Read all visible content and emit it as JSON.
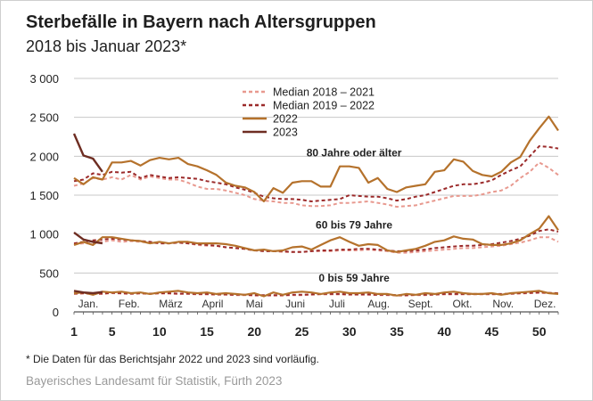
{
  "header": {
    "title": "Sterbefälle in Bayern nach Altersgruppen",
    "subtitle": "2018 bis Januar 2023*"
  },
  "footer": {
    "footnote": "* Die Daten für das Berichtsjahr 2022 und 2023 sind vorläufig.",
    "source": "Bayerisches Landesamt für Statistik, Fürth 2023"
  },
  "colors": {
    "median_2018_2021": "#e8998f",
    "median_2019_2022": "#9b2a2a",
    "y2022": "#b5722c",
    "y2023": "#6e2d22"
  },
  "chart_data": {
    "type": "line",
    "xlim": [
      1,
      52
    ],
    "ylim": [
      0,
      3000
    ],
    "x_ticks": [
      1,
      5,
      10,
      15,
      20,
      25,
      30,
      35,
      40,
      45,
      50
    ],
    "y_ticks": [
      0,
      500,
      1000,
      1500,
      2000,
      2500,
      3000
    ],
    "y_tick_labels": [
      "0",
      "500",
      "1 000",
      "1 500",
      "2 000",
      "2 500",
      "3 000"
    ],
    "months": [
      {
        "label": "Jan.",
        "week": 2.5
      },
      {
        "label": "Feb.",
        "week": 6.8
      },
      {
        "label": "März",
        "week": 11.2
      },
      {
        "label": "April",
        "week": 15.6
      },
      {
        "label": "Mai",
        "week": 20
      },
      {
        "label": "Juni",
        "week": 24.3
      },
      {
        "label": "Juli",
        "week": 28.7
      },
      {
        "label": "Aug.",
        "week": 33.1
      },
      {
        "label": "Sept.",
        "week": 37.5
      },
      {
        "label": "Okt.",
        "week": 41.9
      },
      {
        "label": "Nov.",
        "week": 46.2
      },
      {
        "label": "Dez.",
        "week": 50.6
      }
    ],
    "grid": true,
    "legend": {
      "position": "top-center",
      "entries": [
        {
          "label": "Median 2018 – 2021",
          "series": "median_2018_2021",
          "dash": "dashed"
        },
        {
          "label": "Median 2019 – 2022",
          "series": "median_2019_2022",
          "dash": "dashed"
        },
        {
          "label": "2022",
          "series": "y2022",
          "dash": "solid"
        },
        {
          "label": "2023",
          "series": "y2023",
          "dash": "solid"
        }
      ]
    },
    "groups": [
      {
        "label": "80 Jahre oder älter",
        "label_week": 30.5,
        "label_value": 2000,
        "series": {
          "median_2018_2021": [
            1620,
            1650,
            1720,
            1700,
            1730,
            1700,
            1760,
            1700,
            1740,
            1720,
            1700,
            1700,
            1660,
            1610,
            1580,
            1580,
            1560,
            1530,
            1500,
            1450,
            1430,
            1420,
            1400,
            1400,
            1370,
            1360,
            1360,
            1370,
            1400,
            1400,
            1410,
            1420,
            1400,
            1380,
            1350,
            1360,
            1370,
            1400,
            1430,
            1460,
            1490,
            1490,
            1490,
            1510,
            1540,
            1560,
            1620,
            1720,
            1800,
            1920,
            1850,
            1760
          ],
          "median_2019_2022": [
            1680,
            1700,
            1780,
            1760,
            1800,
            1790,
            1800,
            1720,
            1760,
            1740,
            1720,
            1730,
            1720,
            1710,
            1680,
            1660,
            1640,
            1600,
            1570,
            1530,
            1480,
            1460,
            1450,
            1450,
            1440,
            1420,
            1430,
            1440,
            1450,
            1500,
            1490,
            1480,
            1480,
            1460,
            1430,
            1450,
            1480,
            1500,
            1540,
            1580,
            1620,
            1640,
            1640,
            1660,
            1690,
            1760,
            1820,
            1870,
            2000,
            2130,
            2120,
            2100
          ],
          "y2022": [
            1720,
            1640,
            1730,
            1700,
            1920,
            1920,
            1940,
            1880,
            1950,
            1980,
            1960,
            1980,
            1900,
            1870,
            1820,
            1760,
            1660,
            1620,
            1600,
            1540,
            1420,
            1590,
            1530,
            1660,
            1680,
            1680,
            1610,
            1610,
            1870,
            1870,
            1850,
            1660,
            1720,
            1580,
            1540,
            1600,
            1620,
            1640,
            1800,
            1820,
            1960,
            1930,
            1810,
            1760,
            1740,
            1800,
            1920,
            1990,
            2200,
            2360,
            2510,
            2330
          ],
          "y2023": [
            2290,
            2010,
            1970,
            1800
          ]
        }
      },
      {
        "label": "60 bis 79 Jahre",
        "label_week": 30.5,
        "label_value": 1070,
        "series": {
          "median_2018_2021": [
            870,
            880,
            880,
            900,
            920,
            900,
            910,
            900,
            890,
            880,
            880,
            890,
            880,
            860,
            850,
            850,
            830,
            820,
            810,
            790,
            780,
            780,
            770,
            770,
            770,
            780,
            780,
            780,
            790,
            790,
            790,
            800,
            790,
            780,
            760,
            760,
            770,
            780,
            790,
            800,
            810,
            820,
            820,
            830,
            840,
            850,
            870,
            890,
            920,
            960,
            960,
            900
          ],
          "median_2019_2022": [
            880,
            900,
            920,
            930,
            940,
            930,
            920,
            910,
            900,
            880,
            880,
            890,
            880,
            870,
            860,
            850,
            830,
            820,
            810,
            790,
            780,
            780,
            780,
            770,
            770,
            780,
            790,
            790,
            800,
            800,
            810,
            810,
            800,
            790,
            780,
            780,
            790,
            800,
            820,
            830,
            840,
            850,
            850,
            860,
            870,
            890,
            910,
            940,
            980,
            1040,
            1060,
            1030
          ],
          "y2022": [
            860,
            900,
            860,
            960,
            960,
            940,
            920,
            910,
            880,
            900,
            880,
            900,
            900,
            880,
            880,
            880,
            870,
            850,
            820,
            790,
            800,
            780,
            790,
            830,
            840,
            800,
            860,
            920,
            960,
            900,
            850,
            870,
            860,
            790,
            770,
            790,
            810,
            850,
            900,
            920,
            970,
            940,
            930,
            870,
            860,
            860,
            880,
            920,
            1000,
            1070,
            1230,
            1050
          ],
          "y2023": [
            1020,
            930,
            900,
            880
          ]
        }
      },
      {
        "label": "0 bis 59 Jahre",
        "label_week": 30.5,
        "label_value": 390,
        "series": {
          "median_2018_2021": [
            230,
            235,
            230,
            230,
            240,
            235,
            230,
            235,
            230,
            235,
            235,
            230,
            230,
            225,
            225,
            220,
            220,
            215,
            215,
            210,
            210,
            210,
            210,
            215,
            215,
            220,
            225,
            225,
            225,
            220,
            220,
            220,
            215,
            215,
            210,
            210,
            215,
            215,
            220,
            225,
            225,
            225,
            225,
            225,
            225,
            225,
            230,
            235,
            240,
            245,
            240,
            235
          ],
          "median_2019_2022": [
            235,
            240,
            235,
            235,
            245,
            240,
            235,
            240,
            235,
            240,
            240,
            235,
            235,
            230,
            230,
            225,
            225,
            220,
            220,
            215,
            215,
            215,
            215,
            220,
            220,
            225,
            230,
            230,
            230,
            225,
            225,
            225,
            220,
            220,
            215,
            215,
            220,
            220,
            225,
            230,
            230,
            230,
            230,
            230,
            230,
            230,
            235,
            240,
            245,
            250,
            245,
            240
          ],
          "y2022": [
            240,
            250,
            220,
            260,
            250,
            260,
            240,
            250,
            230,
            250,
            260,
            270,
            250,
            240,
            250,
            230,
            240,
            230,
            220,
            240,
            200,
            250,
            220,
            250,
            260,
            250,
            230,
            250,
            260,
            240,
            240,
            250,
            230,
            230,
            210,
            230,
            220,
            240,
            230,
            250,
            260,
            240,
            230,
            230,
            240,
            220,
            240,
            250,
            260,
            270,
            240,
            230
          ],
          "y2023": [
            270,
            250,
            240,
            255
          ]
        }
      }
    ]
  }
}
